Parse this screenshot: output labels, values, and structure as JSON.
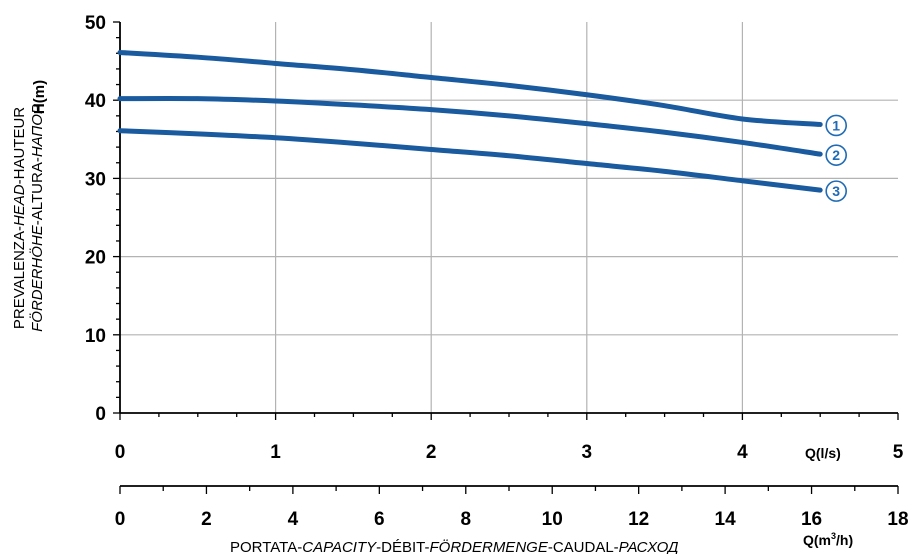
{
  "colors": {
    "curve": "#1a5a9e",
    "marker": "#1f6bb5",
    "grid": "#b3b3b3"
  },
  "chart_data": {
    "type": "line",
    "x_primary": {
      "unit_label": "Q(l/s)",
      "range": [
        0,
        5
      ],
      "ticks": [
        "0",
        "1",
        "2",
        "3",
        "4",
        "5"
      ],
      "minor_step": 0.25
    },
    "x_secondary": {
      "unit_label_main": "Q(m",
      "unit_label_sup": "3",
      "unit_label_end": "/h)",
      "range": [
        0,
        18
      ],
      "ticks": [
        "0",
        "2",
        "4",
        "6",
        "8",
        "10",
        "12",
        "14",
        "16",
        "18"
      ],
      "minor_step": 1,
      "xlabel_parts": [
        "PORTATA-",
        "CAPACITY",
        "-DÉBIT-",
        "FÖRDERMENGE",
        "-CAUDAL-",
        "РАСХОД"
      ]
    },
    "y": {
      "unit_label": "H(m)",
      "range": [
        0,
        50
      ],
      "ticks": [
        "0",
        "10",
        "20",
        "30",
        "40",
        "50"
      ],
      "minor_step": 2,
      "ylabel_line1": "PREVALENZA-HEAD-HAUTEUR",
      "ylabel_line1_parts": [
        "PREVALENZA-",
        "HEAD",
        "-HAUTEUR"
      ],
      "ylabel_line2_parts": [
        "FÖRDERHÖHE",
        "-ALTURA-",
        "НАПОР"
      ]
    },
    "grid": true,
    "series": [
      {
        "name": "1",
        "x": [
          0,
          0.5,
          1,
          1.5,
          2,
          2.5,
          3,
          3.5,
          4,
          4.5
        ],
        "y": [
          46.1,
          45.5,
          44.7,
          43.9,
          42.9,
          41.9,
          40.7,
          39.3,
          37.6,
          36.9
        ]
      },
      {
        "name": "2",
        "x": [
          0,
          0.5,
          1,
          1.5,
          2,
          2.5,
          3,
          3.5,
          4,
          4.5
        ],
        "y": [
          40.2,
          40.2,
          39.9,
          39.4,
          38.8,
          38.0,
          37.0,
          35.9,
          34.6,
          33.1
        ]
      },
      {
        "name": "3",
        "x": [
          0,
          0.5,
          1,
          1.5,
          2,
          2.5,
          3,
          3.5,
          4,
          4.5
        ],
        "y": [
          36.1,
          35.7,
          35.2,
          34.5,
          33.7,
          32.9,
          31.9,
          30.9,
          29.7,
          28.5
        ]
      }
    ]
  }
}
